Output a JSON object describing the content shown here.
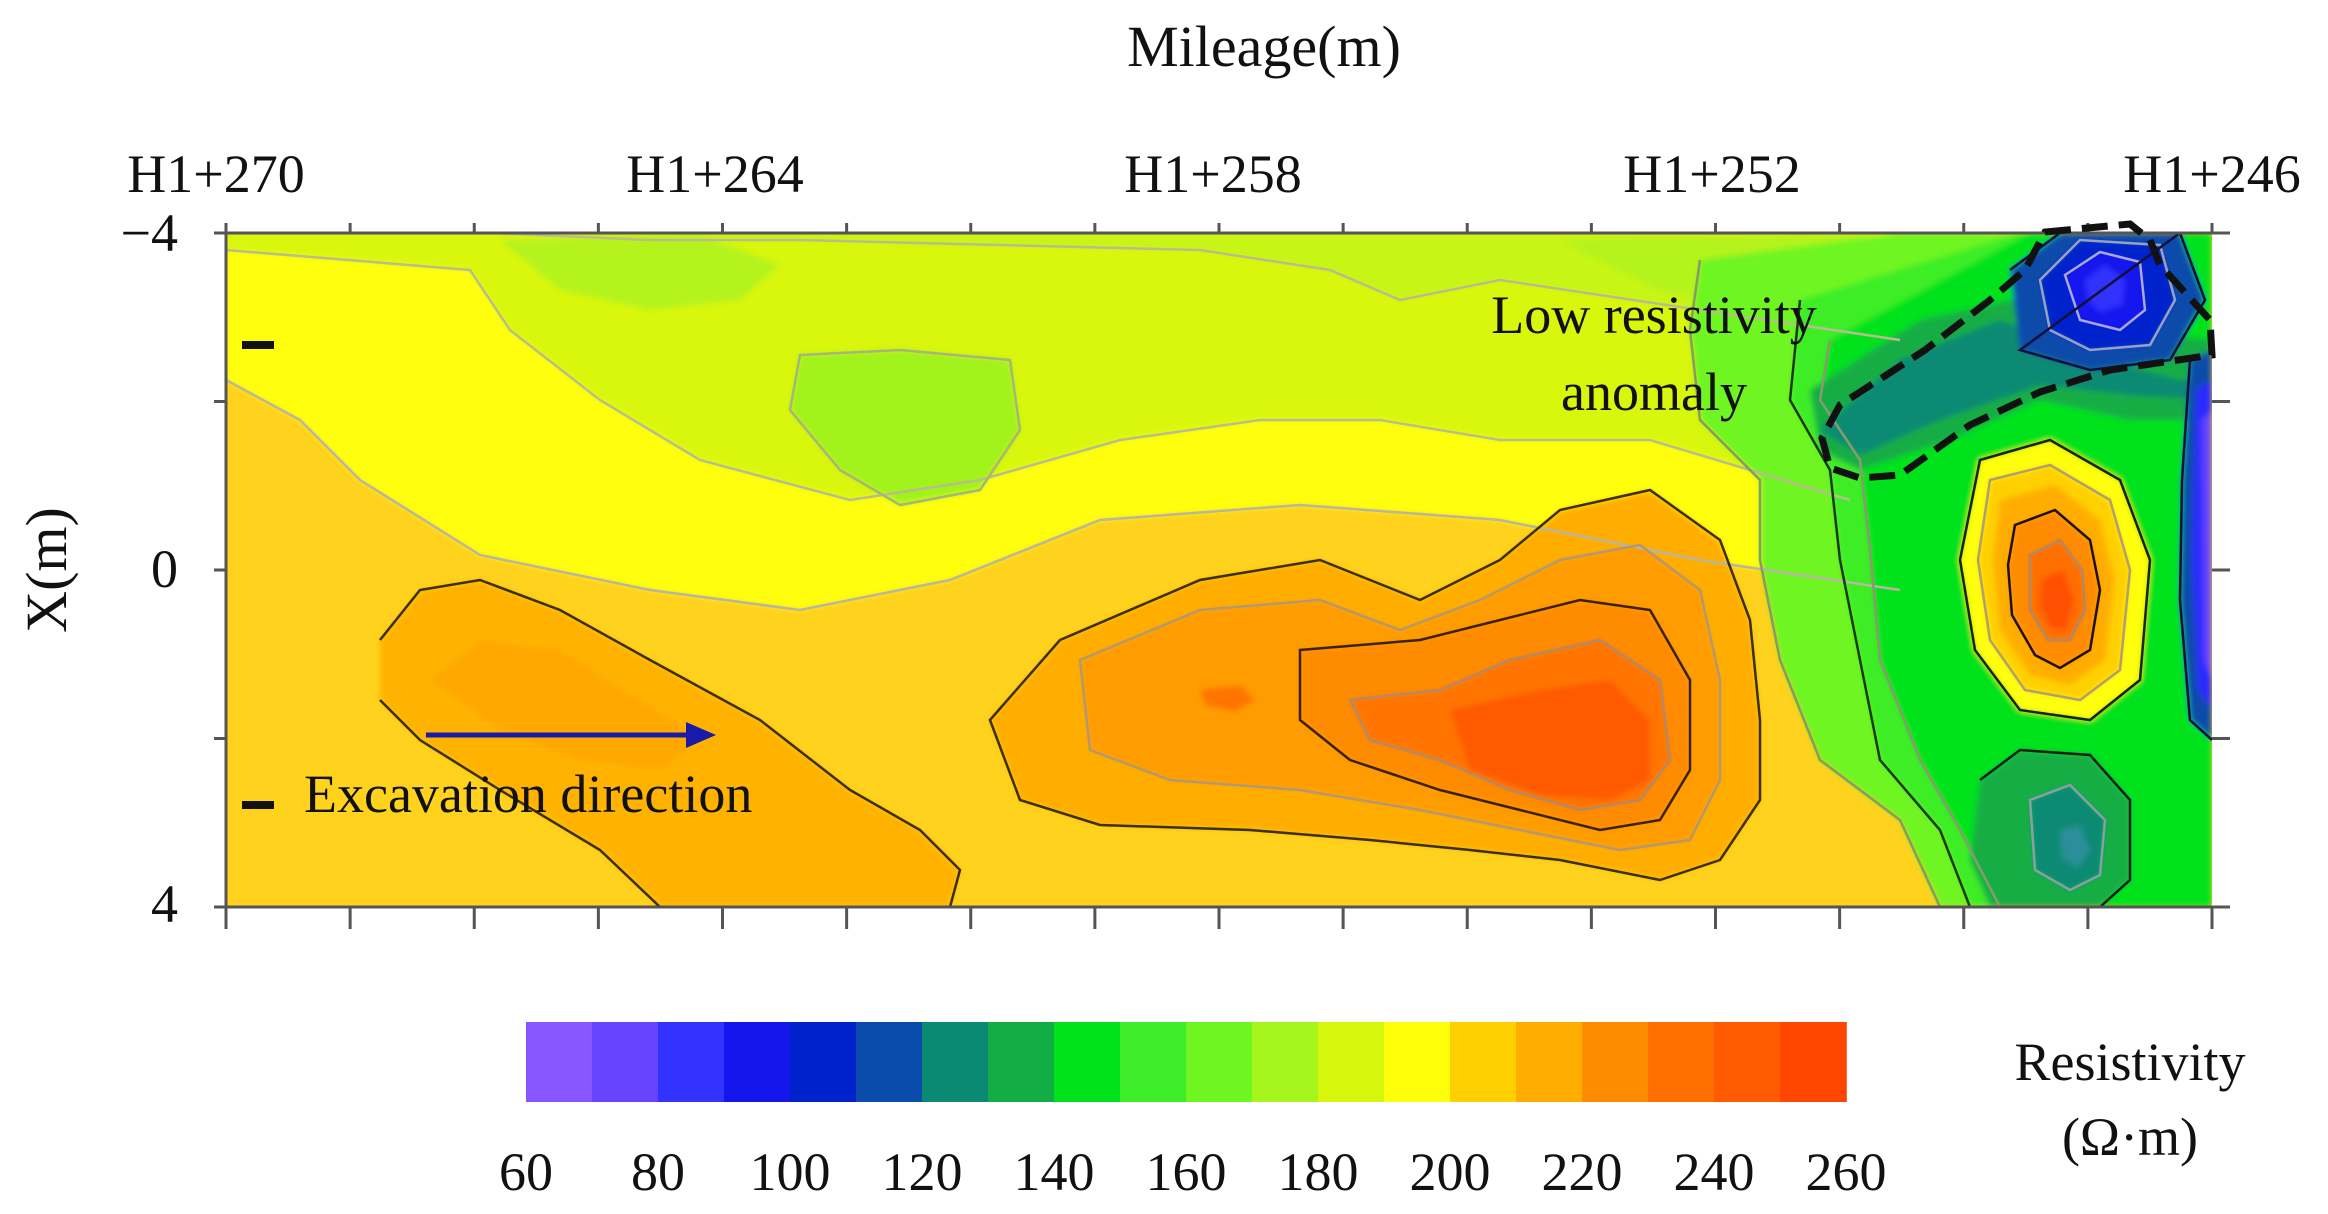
{
  "chart_data": {
    "type": "heatmap",
    "subtype": "filled-contour",
    "xlabel": "Mileage(m)",
    "ylabel": "X(m)",
    "x_range": [
      270,
      246
    ],
    "y_range": [
      -4,
      4
    ],
    "x_ticks": [
      "H1+270",
      "H1+264",
      "H1+258",
      "H1+252",
      "H1+246"
    ],
    "x_tick_values": [
      270,
      264,
      258,
      252,
      246
    ],
    "y_ticks": [
      "−4",
      "0",
      "4"
    ],
    "y_tick_values": [
      -4,
      0,
      4
    ],
    "colorbar": {
      "title_line1": "Resistivity",
      "title_line2": "(Ω·m)",
      "min": 60,
      "max": 260,
      "tick_labels": [
        "60",
        "80",
        "100",
        "120",
        "140",
        "160",
        "180",
        "200",
        "220",
        "240",
        "260"
      ],
      "colors": [
        "#8855ff",
        "#6644ff",
        "#3333ff",
        "#1515ee",
        "#0022cc",
        "#0a4cab",
        "#0a8a73",
        "#13ad45",
        "#00e21b",
        "#3ced28",
        "#6ef522",
        "#a6f51c",
        "#d6f70c",
        "#ffff0a",
        "#ffd000",
        "#ffae00",
        "#ff8c00",
        "#ff6e00",
        "#ff5a00",
        "#ff4600"
      ]
    },
    "annotations": {
      "anomaly_line1": "Low resistivity",
      "anomaly_line2": "anomaly",
      "direction_label": "Excavation direction"
    },
    "features": [
      {
        "kind": "high",
        "x": 253.2,
        "y": 1.8,
        "value": 252
      },
      {
        "kind": "high",
        "x": 256.8,
        "y": 1.5,
        "value": 235
      },
      {
        "kind": "high",
        "x": 247.4,
        "y": 0.3,
        "value": 245
      },
      {
        "kind": "high",
        "x": 268.0,
        "y": 1.5,
        "value": 218
      },
      {
        "kind": "high",
        "x": 265.0,
        "y": 2.2,
        "value": 220
      },
      {
        "kind": "high",
        "x": 266.0,
        "y": 4.0,
        "value": 225
      },
      {
        "kind": "low",
        "x": 247.4,
        "y": -3.1,
        "value": 105
      },
      {
        "kind": "low",
        "x": 249.3,
        "y": -1.7,
        "value": 135
      },
      {
        "kind": "low",
        "x": 246.0,
        "y": -0.5,
        "value": 95
      },
      {
        "kind": "low",
        "x": 247.5,
        "y": 3.3,
        "value": 140
      },
      {
        "kind": "low",
        "x": 264.0,
        "y": -1.8,
        "value": 178
      },
      {
        "kind": "low",
        "x": 264.0,
        "y": -3.6,
        "value": 190
      }
    ]
  }
}
